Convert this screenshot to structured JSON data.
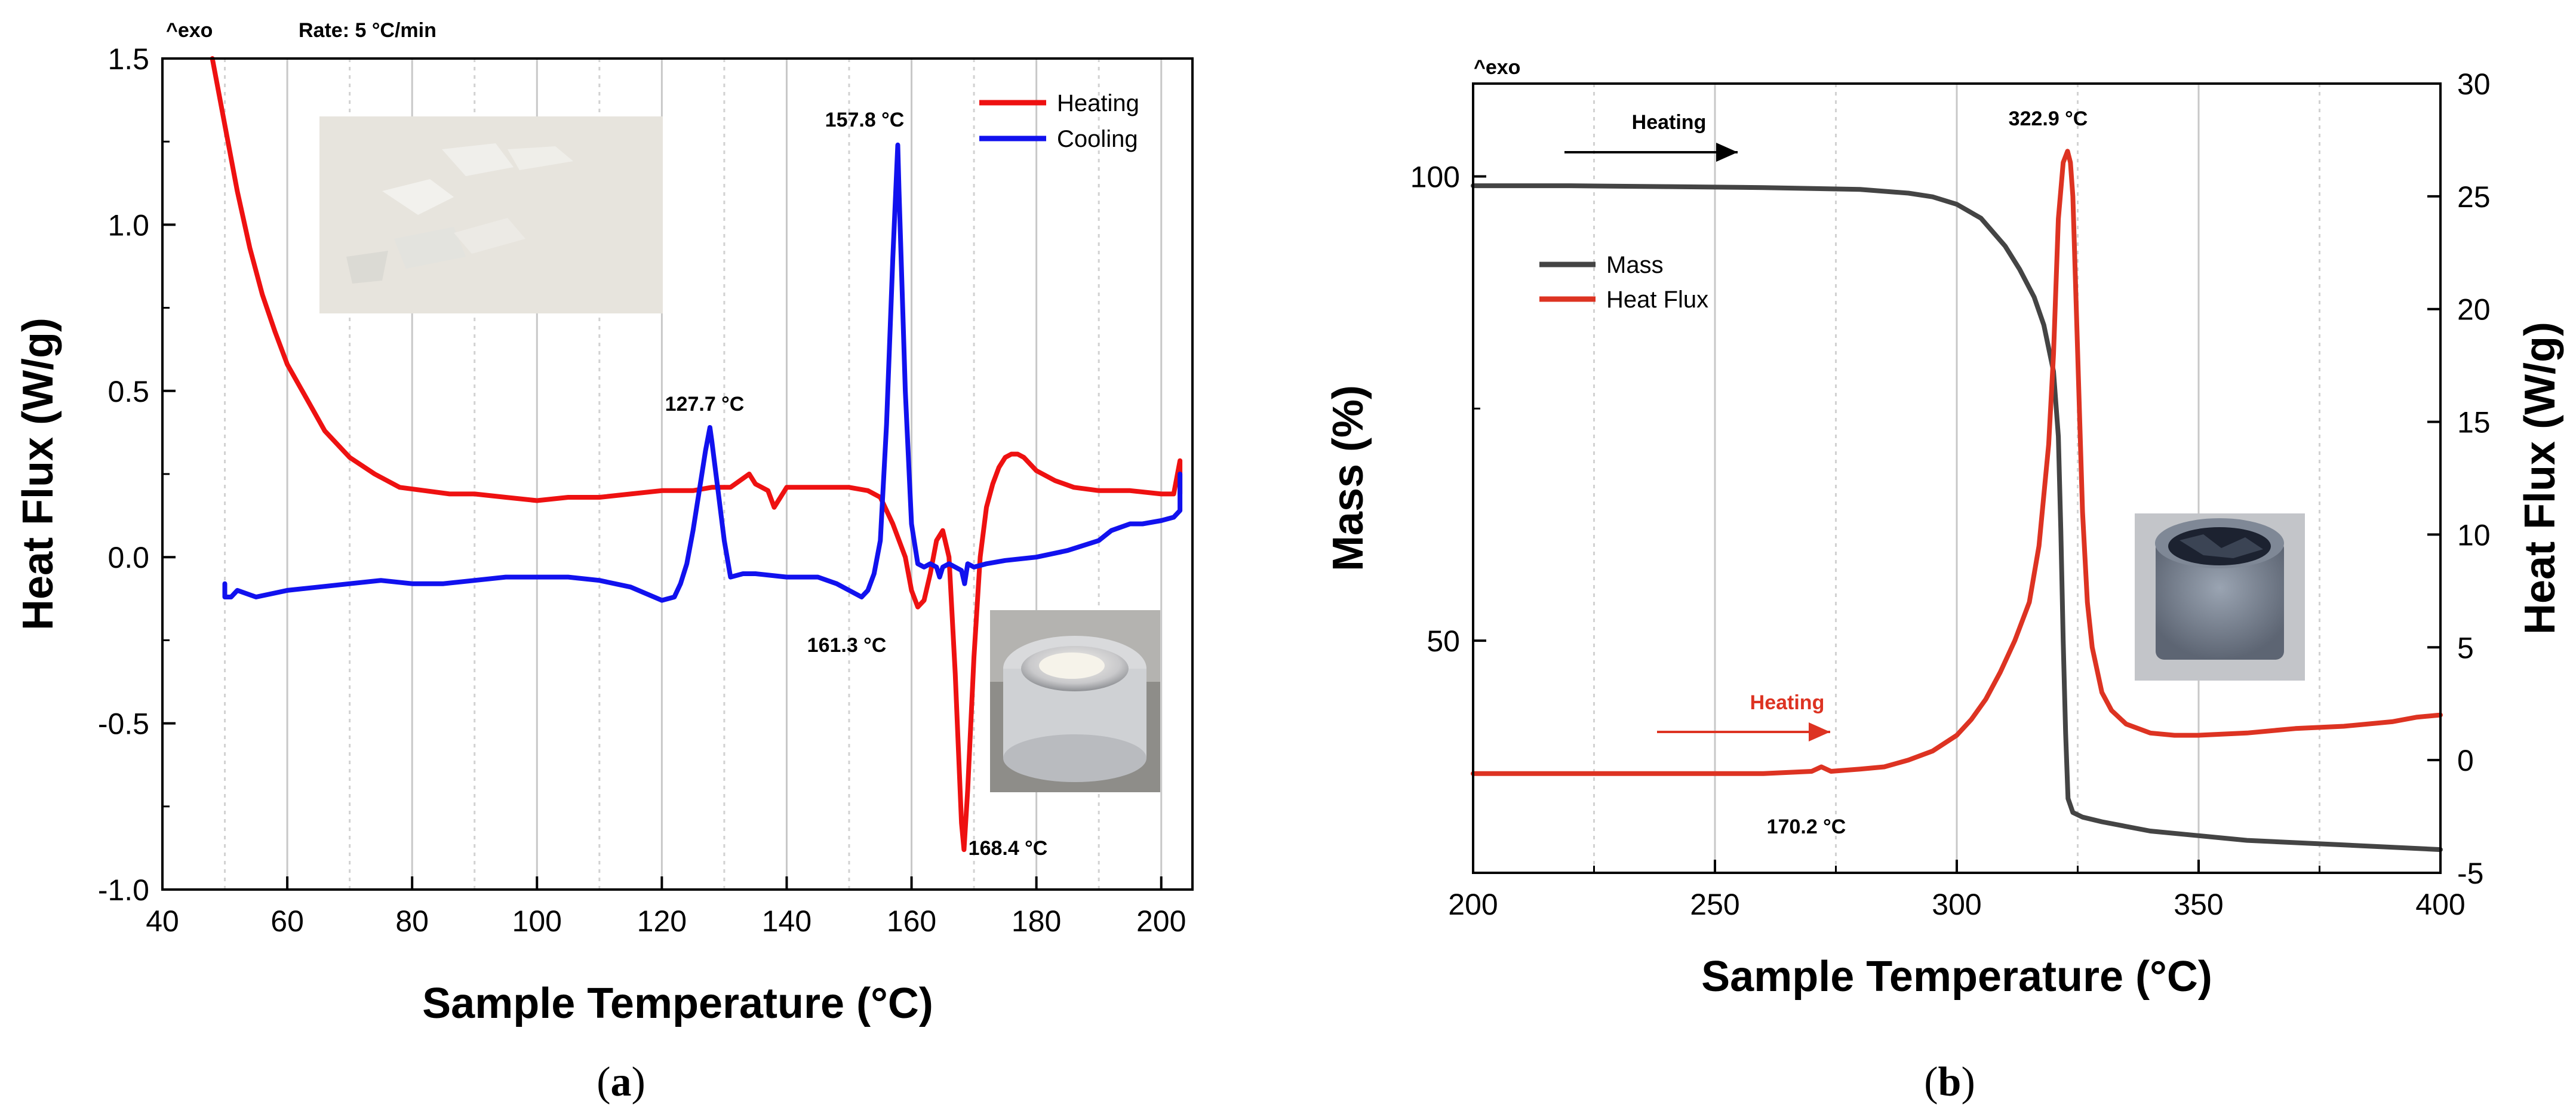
{
  "chart_data": [
    {
      "type": "line",
      "panel_label": "a",
      "xlabel": "Sample Temperature (°C)",
      "ylabel": "Heat Flux (W/g)",
      "exo_label": "^exo",
      "rate_label": "Rate: 5 °C/min",
      "xlim": [
        40,
        205
      ],
      "ylim": [
        -1.0,
        1.5
      ],
      "xticks": [
        40,
        60,
        80,
        100,
        120,
        140,
        160,
        180,
        200
      ],
      "yticks": [
        -1.0,
        -0.5,
        0.0,
        0.5,
        1.0,
        1.5
      ],
      "xtick_labels": [
        "40",
        "60",
        "80",
        "100",
        "120",
        "140",
        "160",
        "180",
        "200"
      ],
      "ytick_labels": [
        "-1.0",
        "-0.5",
        "0.0",
        "0.5",
        "1.0",
        "1.5"
      ],
      "grid": "vertical",
      "legend_position": "top-right",
      "series": [
        {
          "name": "Heating",
          "color": "#ee1111",
          "x": [
            48,
            50,
            52,
            54,
            56,
            58,
            60,
            63,
            66,
            70,
            74,
            78,
            82,
            86,
            90,
            95,
            100,
            105,
            110,
            115,
            120,
            125,
            128,
            131,
            134,
            135,
            137,
            138,
            140,
            145,
            150,
            153,
            155,
            157,
            159,
            160,
            161,
            162,
            163,
            164,
            165,
            166,
            167,
            168,
            168.4,
            169,
            170,
            171,
            172,
            173,
            174,
            175,
            176,
            177,
            178,
            180,
            183,
            186,
            190,
            195,
            200,
            202,
            203,
            203
          ],
          "y": [
            1.5,
            1.3,
            1.1,
            0.93,
            0.79,
            0.68,
            0.58,
            0.48,
            0.38,
            0.3,
            0.25,
            0.21,
            0.2,
            0.19,
            0.19,
            0.18,
            0.17,
            0.18,
            0.18,
            0.19,
            0.2,
            0.2,
            0.21,
            0.21,
            0.25,
            0.22,
            0.2,
            0.15,
            0.21,
            0.21,
            0.21,
            0.2,
            0.18,
            0.1,
            0.0,
            -0.1,
            -0.15,
            -0.13,
            -0.05,
            0.05,
            0.08,
            0.0,
            -0.35,
            -0.8,
            -0.88,
            -0.7,
            -0.3,
            0.0,
            0.15,
            0.22,
            0.27,
            0.3,
            0.31,
            0.31,
            0.3,
            0.26,
            0.23,
            0.21,
            0.2,
            0.2,
            0.19,
            0.19,
            0.29,
            0.19
          ]
        },
        {
          "name": "Cooling",
          "color": "#1111ee",
          "x": [
            203,
            203,
            202,
            200,
            197,
            195,
            192,
            190,
            185,
            180,
            175,
            172,
            170,
            169,
            168.5,
            168,
            167,
            166,
            165,
            164.5,
            164,
            163,
            162,
            161,
            160,
            159,
            158,
            157.8,
            157,
            156,
            155,
            154,
            153,
            152,
            150,
            148,
            145,
            140,
            135,
            133,
            131,
            130,
            129,
            128,
            127.7,
            127,
            126,
            125,
            124,
            123,
            122,
            120,
            115,
            110,
            105,
            100,
            95,
            90,
            85,
            80,
            75,
            70,
            65,
            60,
            55,
            52,
            51,
            50,
            50
          ],
          "y": [
            0.25,
            0.14,
            0.12,
            0.11,
            0.1,
            0.1,
            0.08,
            0.05,
            0.02,
            0.0,
            -0.01,
            -0.02,
            -0.03,
            -0.02,
            -0.08,
            -0.04,
            -0.03,
            -0.02,
            -0.03,
            -0.06,
            -0.03,
            -0.02,
            -0.03,
            -0.02,
            0.1,
            0.5,
            1.1,
            1.24,
            0.9,
            0.4,
            0.05,
            -0.05,
            -0.1,
            -0.12,
            -0.1,
            -0.08,
            -0.06,
            -0.06,
            -0.05,
            -0.05,
            -0.06,
            0.05,
            0.2,
            0.35,
            0.39,
            0.32,
            0.2,
            0.08,
            -0.02,
            -0.08,
            -0.12,
            -0.13,
            -0.09,
            -0.07,
            -0.06,
            -0.06,
            -0.06,
            -0.07,
            -0.08,
            -0.08,
            -0.07,
            -0.08,
            -0.09,
            -0.1,
            -0.12,
            -0.1,
            -0.12,
            -0.12,
            -0.08
          ]
        }
      ],
      "annotations": [
        {
          "text": "127.7 °C",
          "x": 127.7,
          "y": 0.39
        },
        {
          "text": "157.8 °C",
          "x": 157.8,
          "y": 1.24
        },
        {
          "text": "161.3 °C",
          "x": 161.3,
          "y": -0.15
        },
        {
          "text": "168.4 °C",
          "x": 168.4,
          "y": -0.88
        }
      ]
    },
    {
      "type": "line",
      "panel_label": "b",
      "xlabel": "Sample Temperature (°C)",
      "ylabel": "Mass (%)",
      "y2label": "Heat Flux (W/g)",
      "exo_label": "^exo",
      "xlim": [
        200,
        400
      ],
      "ylim": [
        25,
        110
      ],
      "y2lim": [
        -5,
        30
      ],
      "xticks": [
        200,
        250,
        300,
        350,
        400
      ],
      "yticks": [
        50,
        100
      ],
      "y2ticks": [
        -5,
        0,
        5,
        10,
        15,
        20,
        25,
        30
      ],
      "xtick_labels": [
        "200",
        "250",
        "300",
        "350",
        "400"
      ],
      "ytick_labels": [
        "50",
        "100"
      ],
      "y2tick_labels": [
        "-5",
        "0",
        "5",
        "10",
        "15",
        "20",
        "25",
        "30"
      ],
      "grid": "vertical",
      "legend_position": "upper-left",
      "series": [
        {
          "name": "Mass",
          "color": "#444444",
          "axis": "left",
          "x": [
            200,
            220,
            240,
            260,
            280,
            290,
            295,
            300,
            305,
            310,
            313,
            316,
            318,
            320,
            321,
            321.5,
            322,
            322.5,
            323,
            324,
            326,
            330,
            340,
            350,
            360,
            380,
            400
          ],
          "y": [
            99,
            99,
            98.9,
            98.8,
            98.6,
            98.2,
            97.8,
            97,
            95.5,
            92.5,
            90,
            87,
            84,
            79,
            72,
            62,
            50,
            40,
            33,
            31.5,
            31,
            30.5,
            29.5,
            29,
            28.5,
            28,
            27.5
          ]
        },
        {
          "name": "Heat Flux",
          "color": "#dd3322",
          "axis": "right",
          "x": [
            200,
            220,
            240,
            260,
            270,
            272,
            274,
            280,
            285,
            290,
            295,
            300,
            303,
            306,
            309,
            312,
            315,
            317,
            319,
            320,
            321,
            322,
            322.9,
            323.5,
            324,
            325,
            326,
            327,
            328,
            330,
            332,
            335,
            340,
            345,
            350,
            360,
            370,
            380,
            390,
            395,
            400
          ],
          "y": [
            -0.6,
            -0.6,
            -0.6,
            -0.6,
            -0.5,
            -0.3,
            -0.5,
            -0.4,
            -0.3,
            0,
            0.4,
            1.1,
            1.8,
            2.7,
            3.9,
            5.3,
            7,
            9.5,
            14,
            18,
            24,
            26.5,
            27,
            26.5,
            25,
            18,
            11,
            7,
            5,
            3,
            2.2,
            1.6,
            1.2,
            1.1,
            1.1,
            1.2,
            1.4,
            1.5,
            1.7,
            1.9,
            2
          ]
        }
      ],
      "arrows": [
        {
          "text": "Heating",
          "color": "#000000"
        },
        {
          "text": "Heating",
          "color": "#dd3322"
        }
      ],
      "annotations": [
        {
          "text": "322.9 °C",
          "x": 322.9,
          "y": 27
        },
        {
          "text": "170.2 °C"
        }
      ]
    }
  ]
}
